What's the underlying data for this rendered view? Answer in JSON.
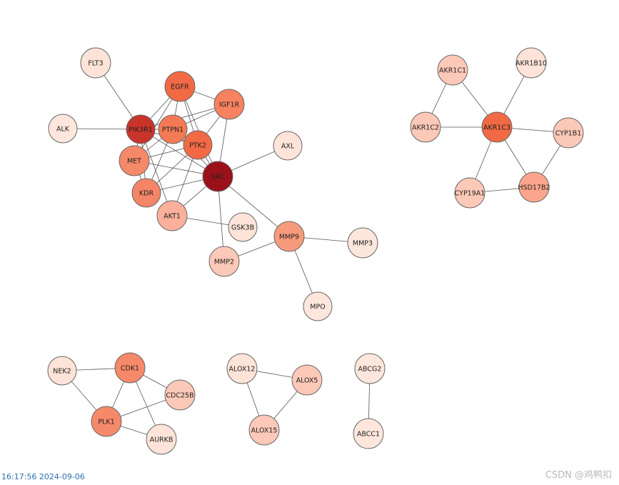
{
  "diagram": {
    "nodes": [
      {
        "id": "FLT3",
        "label": "FLT3",
        "color": "#fde3d8"
      },
      {
        "id": "EGFR",
        "label": "EGFR",
        "color": "#f16a45"
      },
      {
        "id": "IGF1R",
        "label": "IGF1R",
        "color": "#f7825f"
      },
      {
        "id": "ALK",
        "label": "ALK",
        "color": "#fde6dc"
      },
      {
        "id": "PIK3R1",
        "label": "PIK3R1",
        "color": "#c9342a"
      },
      {
        "id": "PTPN1",
        "label": "PTPN1",
        "color": "#f47a55"
      },
      {
        "id": "PTK2",
        "label": "PTK2",
        "color": "#f16a45"
      },
      {
        "id": "MET",
        "label": "MET",
        "color": "#f6896a"
      },
      {
        "id": "SRC",
        "label": "SRC",
        "color": "#9b111a"
      },
      {
        "id": "AXL",
        "label": "AXL",
        "color": "#fde3d8"
      },
      {
        "id": "KDR",
        "label": "KDR",
        "color": "#f48566"
      },
      {
        "id": "AKT1",
        "label": "AKT1",
        "color": "#fbb09b"
      },
      {
        "id": "GSK3B",
        "label": "GSK3B",
        "color": "#fde3d8"
      },
      {
        "id": "MMP9",
        "label": "MMP9",
        "color": "#f89a7c"
      },
      {
        "id": "MMP3",
        "label": "MMP3",
        "color": "#fde6dc"
      },
      {
        "id": "MMP2",
        "label": "MMP2",
        "color": "#fcc8b7"
      },
      {
        "id": "MPO",
        "label": "MPO",
        "color": "#fde6dc"
      },
      {
        "id": "AKR1C1",
        "label": "AKR1C1",
        "color": "#fcc8b7"
      },
      {
        "id": "AKR1B10",
        "label": "AKR1B10",
        "color": "#fde3d8"
      },
      {
        "id": "AKR1C2",
        "label": "AKR1C2",
        "color": "#fcc8b7"
      },
      {
        "id": "AKR1C3",
        "label": "AKR1C3",
        "color": "#f16a45"
      },
      {
        "id": "CYP1B1",
        "label": "CYP1B1",
        "color": "#fcc8b7"
      },
      {
        "id": "CYP19A1",
        "label": "CYP19A1",
        "color": "#fcc8b7"
      },
      {
        "id": "HSD17B2",
        "label": "HSD17B2",
        "color": "#fba68c"
      },
      {
        "id": "NEK2",
        "label": "NEK2",
        "color": "#fde3d8"
      },
      {
        "id": "CDK1",
        "label": "CDK1",
        "color": "#f6896a"
      },
      {
        "id": "CDC25B",
        "label": "CDC25B",
        "color": "#fcc8b7"
      },
      {
        "id": "PLK1",
        "label": "PLK1",
        "color": "#f6896a"
      },
      {
        "id": "AURKB",
        "label": "AURKB",
        "color": "#fde3d8"
      },
      {
        "id": "ALOX12",
        "label": "ALOX12",
        "color": "#fde3d8"
      },
      {
        "id": "ALOX5",
        "label": "ALOX5",
        "color": "#fcc8b7"
      },
      {
        "id": "ALOX15",
        "label": "ALOX15",
        "color": "#fcc8b7"
      },
      {
        "id": "ABCG2",
        "label": "ABCG2",
        "color": "#fde6dc"
      },
      {
        "id": "ABCC1",
        "label": "ABCC1",
        "color": "#fde6dc"
      }
    ],
    "edges": [
      [
        "FLT3",
        "PIK3R1"
      ],
      [
        "ALK",
        "PIK3R1"
      ],
      [
        "EGFR",
        "PIK3R1"
      ],
      [
        "EGFR",
        "PTPN1"
      ],
      [
        "EGFR",
        "PTK2"
      ],
      [
        "EGFR",
        "IGF1R"
      ],
      [
        "EGFR",
        "SRC"
      ],
      [
        "EGFR",
        "MET"
      ],
      [
        "IGF1R",
        "PIK3R1"
      ],
      [
        "IGF1R",
        "PTPN1"
      ],
      [
        "IGF1R",
        "PTK2"
      ],
      [
        "IGF1R",
        "SRC"
      ],
      [
        "PIK3R1",
        "PTPN1"
      ],
      [
        "PIK3R1",
        "PTK2"
      ],
      [
        "PIK3R1",
        "MET"
      ],
      [
        "PIK3R1",
        "KDR"
      ],
      [
        "PIK3R1",
        "SRC"
      ],
      [
        "PIK3R1",
        "AKT1"
      ],
      [
        "PTPN1",
        "PTK2"
      ],
      [
        "PTPN1",
        "SRC"
      ],
      [
        "PTPN1",
        "MET"
      ],
      [
        "PTPN1",
        "KDR"
      ],
      [
        "PTK2",
        "SRC"
      ],
      [
        "PTK2",
        "MET"
      ],
      [
        "PTK2",
        "KDR"
      ],
      [
        "PTK2",
        "AKT1"
      ],
      [
        "MET",
        "SRC"
      ],
      [
        "MET",
        "KDR"
      ],
      [
        "SRC",
        "AXL"
      ],
      [
        "SRC",
        "KDR"
      ],
      [
        "SRC",
        "AKT1"
      ],
      [
        "SRC",
        "MMP9"
      ],
      [
        "SRC",
        "MMP2"
      ],
      [
        "AKT1",
        "GSK3B"
      ],
      [
        "MMP9",
        "MMP2"
      ],
      [
        "MMP9",
        "MMP3"
      ],
      [
        "MMP9",
        "MPO"
      ],
      [
        "AKR1C1",
        "AKR1C2"
      ],
      [
        "AKR1C1",
        "AKR1C3"
      ],
      [
        "AKR1B10",
        "AKR1C3"
      ],
      [
        "AKR1C2",
        "AKR1C3"
      ],
      [
        "AKR1C3",
        "CYP1B1"
      ],
      [
        "AKR1C3",
        "CYP19A1"
      ],
      [
        "AKR1C3",
        "HSD17B2"
      ],
      [
        "CYP1B1",
        "HSD17B2"
      ],
      [
        "CYP19A1",
        "HSD17B2"
      ],
      [
        "NEK2",
        "CDK1"
      ],
      [
        "NEK2",
        "PLK1"
      ],
      [
        "CDK1",
        "PLK1"
      ],
      [
        "CDK1",
        "CDC25B"
      ],
      [
        "CDK1",
        "AURKB"
      ],
      [
        "PLK1",
        "CDC25B"
      ],
      [
        "PLK1",
        "AURKB"
      ],
      [
        "ALOX12",
        "ALOX5"
      ],
      [
        "ALOX12",
        "ALOX15"
      ],
      [
        "ALOX5",
        "ALOX15"
      ],
      [
        "ABCG2",
        "ABCC1"
      ]
    ]
  },
  "footer": {
    "timestamp": "16:17:56 2024-09-06",
    "watermark": "CSDN @鸡鸭扣"
  }
}
